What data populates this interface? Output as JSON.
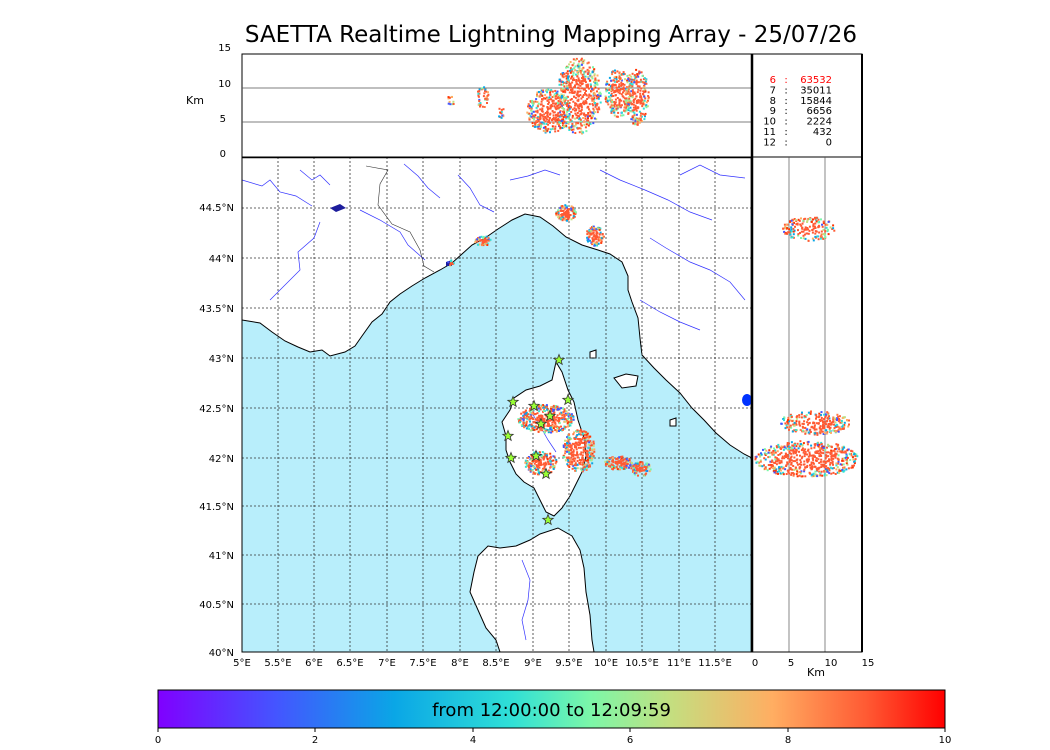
{
  "title": "SAETTA Realtime Lightning Mapping Array - 25/07/26",
  "alt_axis": {
    "label": "Km",
    "ticks": [
      "15",
      "10",
      "5",
      "0"
    ]
  },
  "lat_axis": {
    "ticks": [
      "44.5°N",
      "44°N",
      "43.5°N",
      "43°N",
      "42.5°N",
      "42°N",
      "41.5°N",
      "41°N",
      "40.5°N",
      "40°N"
    ]
  },
  "lon_axis": {
    "ticks": [
      "5°E",
      "5.5°E",
      "6°E",
      "6.5°E",
      "7°E",
      "7.5°E",
      "8°E",
      "8.5°E",
      "9°E",
      "9.5°E",
      "10°E",
      "10.5°E",
      "11°E",
      "11.5°E"
    ]
  },
  "side_axis": {
    "label": "Km",
    "ticks": [
      "0",
      "5",
      "10",
      "15"
    ]
  },
  "station_counts": [
    {
      "n": "6",
      "count": "63532",
      "color": "#ff0000"
    },
    {
      "n": "7",
      "count": "35011",
      "color": "#000000"
    },
    {
      "n": "8",
      "count": "15844",
      "color": "#000000"
    },
    {
      "n": "9",
      "count": "6656",
      "color": "#000000"
    },
    {
      "n": "10",
      "count": "2224",
      "color": "#000000"
    },
    {
      "n": "11",
      "count": "432",
      "color": "#000000"
    },
    {
      "n": "12",
      "count": "0",
      "color": "#000000"
    }
  ],
  "colorbar": {
    "text": "from 12:00:00 to 12:09:59",
    "ticks": [
      "0",
      "2",
      "4",
      "6",
      "8",
      "10"
    ],
    "range": [
      0,
      10
    ]
  },
  "map_colors": {
    "sea": "#b8eefb",
    "land": "#ffffff",
    "rivers": "#3333ff",
    "coast": "#000000",
    "stations": "#99ff33"
  }
}
